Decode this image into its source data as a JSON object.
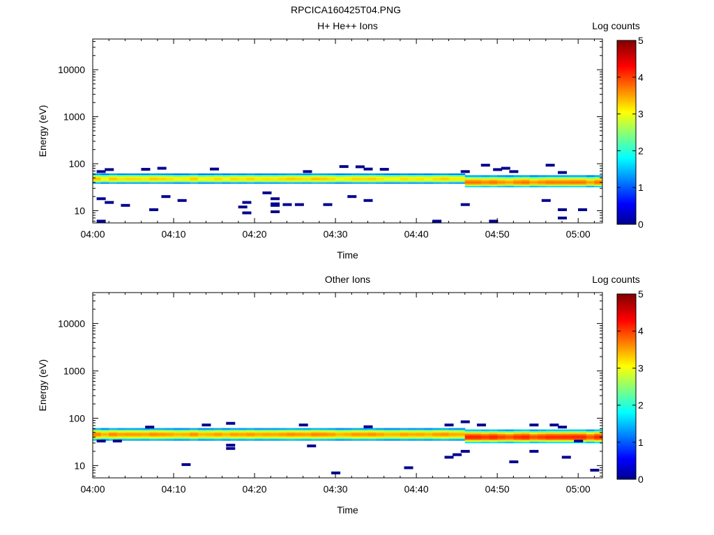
{
  "figure_title": "RPCICA160425T04.PNG",
  "chart_data": [
    {
      "type": "heatmap",
      "title": "H+ He++ Ions",
      "xlabel": "Time",
      "ylabel": "Energy (eV)",
      "x_ticks": [
        "04:00",
        "04:10",
        "04:20",
        "04:30",
        "04:40",
        "04:50",
        "05:00"
      ],
      "x_range_minutes": [
        0,
        63
      ],
      "y_scale": "log",
      "y_range": [
        5.5,
        45000
      ],
      "y_ticks": [
        {
          "value": 10,
          "label": "10"
        },
        {
          "value": 100,
          "label": "100"
        },
        {
          "value": 1000,
          "label": "1000"
        },
        {
          "value": 10000,
          "label": "10000"
        }
      ],
      "colorbar": {
        "label": "Log counts",
        "range": [
          0,
          5
        ],
        "ticks": [
          "0",
          "1",
          "2",
          "3",
          "4",
          "5"
        ]
      },
      "band": [
        {
          "t_start": 0,
          "t_end": 46,
          "e_low": 38,
          "e_high": 62,
          "e_peak": 48,
          "peak_log_counts": 3.3
        },
        {
          "t_start": 46,
          "t_end": 63,
          "e_low": 32,
          "e_high": 57,
          "e_peak": 40,
          "peak_log_counts": 3.7
        }
      ],
      "sparse_points": [
        {
          "t": 1,
          "e": 68
        },
        {
          "t": 2,
          "e": 75
        },
        {
          "t": 1,
          "e": 18
        },
        {
          "t": 2,
          "e": 15
        },
        {
          "t": 4,
          "e": 13
        },
        {
          "t": 1,
          "e": 6
        },
        {
          "t": 6.5,
          "e": 76
        },
        {
          "t": 8.5,
          "e": 80
        },
        {
          "t": 7.5,
          "e": 10.5
        },
        {
          "t": 9,
          "e": 20
        },
        {
          "t": 11,
          "e": 16.5
        },
        {
          "t": 15,
          "e": 77
        },
        {
          "t": 18.5,
          "e": 12
        },
        {
          "t": 19,
          "e": 15
        },
        {
          "t": 19,
          "e": 9
        },
        {
          "t": 21.5,
          "e": 24
        },
        {
          "t": 22.5,
          "e": 18
        },
        {
          "t": 22.5,
          "e": 14
        },
        {
          "t": 22.5,
          "e": 13
        },
        {
          "t": 24,
          "e": 13.5
        },
        {
          "t": 25.5,
          "e": 13.5
        },
        {
          "t": 22.5,
          "e": 9.5
        },
        {
          "t": 26.5,
          "e": 68
        },
        {
          "t": 29,
          "e": 13.5
        },
        {
          "t": 31,
          "e": 87
        },
        {
          "t": 33,
          "e": 86
        },
        {
          "t": 34,
          "e": 77
        },
        {
          "t": 36,
          "e": 76
        },
        {
          "t": 32,
          "e": 20
        },
        {
          "t": 34,
          "e": 16.5
        },
        {
          "t": 42.5,
          "e": 6
        },
        {
          "t": 46,
          "e": 13.5
        },
        {
          "t": 46,
          "e": 68
        },
        {
          "t": 48.5,
          "e": 93
        },
        {
          "t": 50,
          "e": 75
        },
        {
          "t": 51,
          "e": 80
        },
        {
          "t": 52,
          "e": 68
        },
        {
          "t": 49.5,
          "e": 6
        },
        {
          "t": 56.5,
          "e": 93
        },
        {
          "t": 56,
          "e": 16.5
        },
        {
          "t": 58,
          "e": 65
        },
        {
          "t": 58,
          "e": 10.5
        },
        {
          "t": 58,
          "e": 7
        },
        {
          "t": 60.5,
          "e": 10.5
        }
      ]
    },
    {
      "type": "heatmap",
      "title": "Other Ions",
      "xlabel": "Time",
      "ylabel": "Energy (eV)",
      "x_ticks": [
        "04:00",
        "04:10",
        "04:20",
        "04:30",
        "04:40",
        "04:50",
        "05:00"
      ],
      "x_range_minutes": [
        0,
        63
      ],
      "y_scale": "log",
      "y_range": [
        5.5,
        45000
      ],
      "y_ticks": [
        {
          "value": 10,
          "label": "10"
        },
        {
          "value": 100,
          "label": "100"
        },
        {
          "value": 1000,
          "label": "1000"
        },
        {
          "value": 10000,
          "label": "10000"
        }
      ],
      "colorbar": {
        "label": "Log counts",
        "range": [
          0,
          5
        ],
        "ticks": [
          "0",
          "1",
          "2",
          "3",
          "4",
          "5"
        ]
      },
      "band": [
        {
          "t_start": 0,
          "t_end": 46,
          "e_low": 34,
          "e_high": 62,
          "e_peak": 46,
          "peak_log_counts": 3.6
        },
        {
          "t_start": 46,
          "t_end": 63,
          "e_low": 30,
          "e_high": 58,
          "e_peak": 40,
          "peak_log_counts": 4.1
        }
      ],
      "sparse_points": [
        {
          "t": 1,
          "e": 33
        },
        {
          "t": 3,
          "e": 33
        },
        {
          "t": 7,
          "e": 65
        },
        {
          "t": 11.5,
          "e": 10.5
        },
        {
          "t": 14,
          "e": 72
        },
        {
          "t": 17,
          "e": 78
        },
        {
          "t": 17,
          "e": 27
        },
        {
          "t": 17,
          "e": 23
        },
        {
          "t": 26,
          "e": 72
        },
        {
          "t": 27,
          "e": 26
        },
        {
          "t": 30,
          "e": 7
        },
        {
          "t": 34,
          "e": 66
        },
        {
          "t": 39,
          "e": 9
        },
        {
          "t": 44,
          "e": 72
        },
        {
          "t": 44,
          "e": 15
        },
        {
          "t": 45,
          "e": 17
        },
        {
          "t": 46,
          "e": 84
        },
        {
          "t": 46,
          "e": 20
        },
        {
          "t": 48,
          "e": 72
        },
        {
          "t": 52,
          "e": 12
        },
        {
          "t": 54.5,
          "e": 72
        },
        {
          "t": 54.5,
          "e": 20
        },
        {
          "t": 57,
          "e": 72
        },
        {
          "t": 58,
          "e": 65
        },
        {
          "t": 58.5,
          "e": 15
        },
        {
          "t": 60,
          "e": 33
        },
        {
          "t": 62,
          "e": 8
        }
      ]
    }
  ]
}
